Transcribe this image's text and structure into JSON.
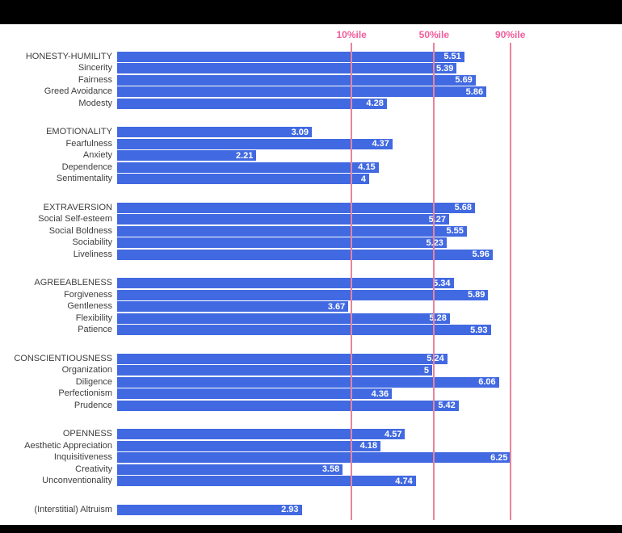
{
  "chart_data": {
    "type": "bar",
    "orientation": "horizontal",
    "title": "",
    "xlabel": "",
    "ylabel": "",
    "xlim": [
      0,
      8
    ],
    "grid": false,
    "bar_color": "#4169e1",
    "bar_value_text_color": "#ffffff",
    "row_label_color": "#3d3d3d",
    "percentile_label_color": "#f25c9b",
    "percentile_line_color": "#e9839b",
    "background_color": "#ffffff",
    "page_background_color": "#000000",
    "percentiles": [
      {
        "label": "10%ile",
        "value": 3.72
      },
      {
        "label": "50%ile",
        "value": 5.03
      },
      {
        "label": "90%ile",
        "value": 6.24
      }
    ],
    "groups": [
      {
        "name": "HONESTY-HUMILITY",
        "rows": [
          {
            "label": "HONESTY-HUMILITY",
            "value": 5.51,
            "display": "5.51"
          },
          {
            "label": "Sincerity",
            "value": 5.39,
            "display": "5.39"
          },
          {
            "label": "Fairness",
            "value": 5.69,
            "display": "5.69"
          },
          {
            "label": "Greed Avoidance",
            "value": 5.86,
            "display": "5.86"
          },
          {
            "label": "Modesty",
            "value": 4.28,
            "display": "4.28"
          }
        ]
      },
      {
        "name": "EMOTIONALITY",
        "rows": [
          {
            "label": "EMOTIONALITY",
            "value": 3.09,
            "display": "3.09"
          },
          {
            "label": "Fearfulness",
            "value": 4.37,
            "display": "4.37"
          },
          {
            "label": "Anxiety",
            "value": 2.21,
            "display": "2.21"
          },
          {
            "label": "Dependence",
            "value": 4.15,
            "display": "4.15"
          },
          {
            "label": "Sentimentality",
            "value": 4,
            "display": "4"
          }
        ]
      },
      {
        "name": "EXTRAVERSION",
        "rows": [
          {
            "label": "EXTRAVERSION",
            "value": 5.68,
            "display": "5.68"
          },
          {
            "label": "Social Self-esteem",
            "value": 5.27,
            "display": "5.27"
          },
          {
            "label": "Social Boldness",
            "value": 5.55,
            "display": "5.55"
          },
          {
            "label": "Sociability",
            "value": 5.23,
            "display": "5.23"
          },
          {
            "label": "Liveliness",
            "value": 5.96,
            "display": "5.96"
          }
        ]
      },
      {
        "name": "AGREEABLENESS",
        "rows": [
          {
            "label": "AGREEABLENESS",
            "value": 5.34,
            "display": "5.34"
          },
          {
            "label": "Forgiveness",
            "value": 5.89,
            "display": "5.89"
          },
          {
            "label": "Gentleness",
            "value": 3.67,
            "display": "3.67"
          },
          {
            "label": "Flexibility",
            "value": 5.28,
            "display": "5.28"
          },
          {
            "label": "Patience",
            "value": 5.93,
            "display": "5.93"
          }
        ]
      },
      {
        "name": "CONSCIENTIOUSNESS",
        "rows": [
          {
            "label": "CONSCIENTIOUSNESS",
            "value": 5.24,
            "display": "5.24"
          },
          {
            "label": "Organization",
            "value": 5,
            "display": "5"
          },
          {
            "label": "Diligence",
            "value": 6.06,
            "display": "6.06"
          },
          {
            "label": "Perfectionism",
            "value": 4.36,
            "display": "4.36"
          },
          {
            "label": "Prudence",
            "value": 5.42,
            "display": "5.42"
          }
        ]
      },
      {
        "name": "OPENNESS",
        "rows": [
          {
            "label": "OPENNESS",
            "value": 4.57,
            "display": "4.57"
          },
          {
            "label": "Aesthetic Appreciation",
            "value": 4.18,
            "display": "4.18"
          },
          {
            "label": "Inquisitiveness",
            "value": 6.25,
            "display": "6.25"
          },
          {
            "label": "Creativity",
            "value": 3.58,
            "display": "3.58"
          },
          {
            "label": "Unconventionality",
            "value": 4.74,
            "display": "4.74"
          }
        ]
      },
      {
        "name": "(Interstitial) Altruism",
        "rows": [
          {
            "label": "(Interstitial) Altruism",
            "value": 2.93,
            "display": "2.93"
          }
        ]
      }
    ]
  }
}
